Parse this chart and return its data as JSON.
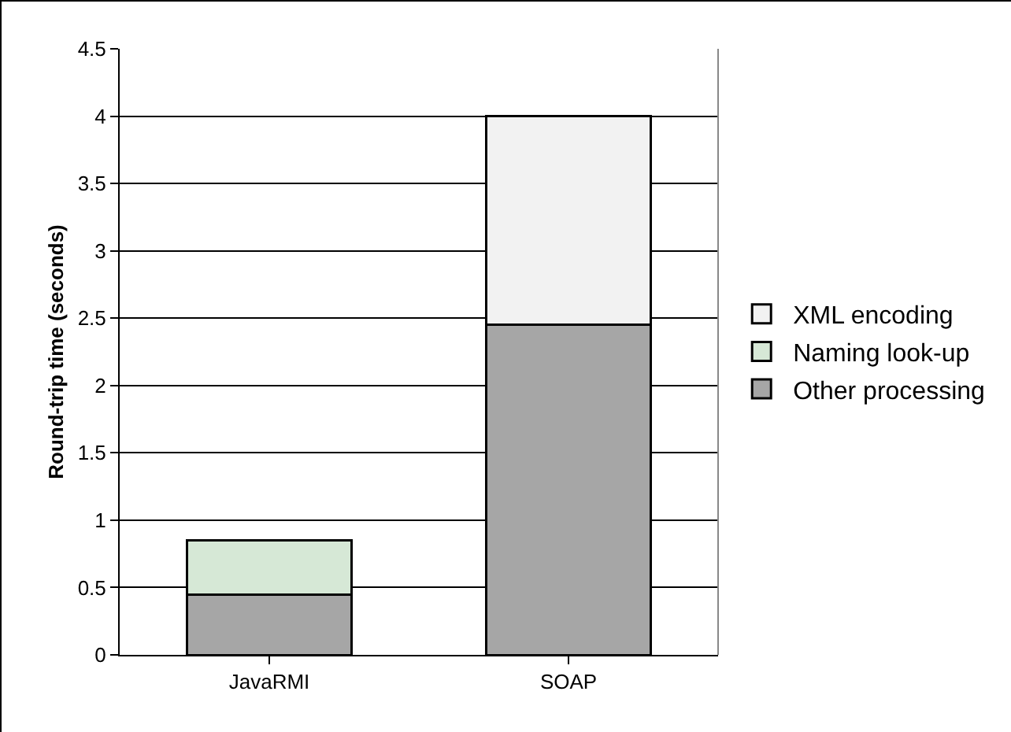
{
  "chart_data": {
    "type": "bar",
    "stacked": true,
    "ylabel": "Round-trip time (seconds)",
    "categories": [
      "JavaRMI",
      "SOAP"
    ],
    "series": [
      {
        "name": "Other processing",
        "color": "#a6a6a6",
        "values": [
          0.45,
          2.45
        ]
      },
      {
        "name": "Naming look-up",
        "color": "#d6e8d6",
        "values": [
          0.4,
          null
        ]
      },
      {
        "name": "XML encoding",
        "color": "#f2f2f2",
        "values": [
          null,
          1.55
        ]
      }
    ],
    "ylim": [
      0,
      4.5
    ],
    "yticks": [
      0,
      0.5,
      1,
      1.5,
      2,
      2.5,
      3,
      3.5,
      4,
      4.5
    ],
    "grid": "y",
    "legend": "right"
  }
}
